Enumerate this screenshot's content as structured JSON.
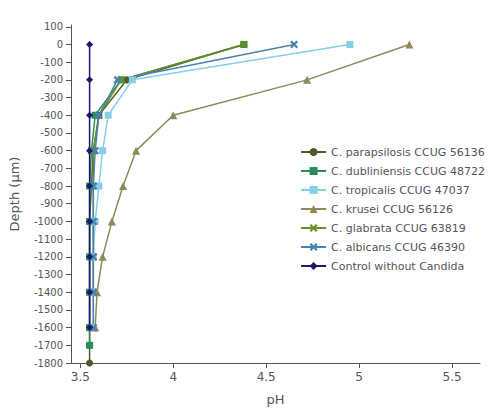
{
  "chart_data": {
    "type": "line",
    "xlabel": "pH",
    "ylabel": "Depth (μm)",
    "series": [
      {
        "name": "C. parapsilosis CCUG 56136",
        "color": "#4d5a2a",
        "marker": "circle",
        "x": [
          4.38,
          3.75,
          3.6,
          3.57,
          3.56,
          3.55,
          3.55,
          3.55,
          3.55,
          3.55,
          3.55
        ],
        "values": [
          0,
          -200,
          -400,
          -600,
          -800,
          -1000,
          -1200,
          -1400,
          -1600,
          -1700,
          -1800
        ]
      },
      {
        "name": "C. dubliniensis CCUG 48722",
        "color": "#2e8b57",
        "marker": "square",
        "x": [
          4.38,
          3.72,
          3.58,
          3.56,
          3.55,
          3.55,
          3.55,
          3.55,
          3.55,
          3.55
        ],
        "values": [
          0,
          -200,
          -400,
          -600,
          -800,
          -1000,
          -1200,
          -1400,
          -1600,
          -1700
        ]
      },
      {
        "name": "C. tropicalis CCUG 47037",
        "color": "#87ceeb",
        "marker": "square",
        "x": [
          4.95,
          3.78,
          3.65,
          3.62,
          3.6,
          3.58,
          3.57,
          3.57,
          3.57
        ],
        "values": [
          0,
          -200,
          -400,
          -600,
          -800,
          -1000,
          -1200,
          -1400,
          -1600
        ]
      },
      {
        "name": "C. krusei CCUG 56126",
        "color": "#8b8b5a",
        "marker": "triangle",
        "x": [
          5.27,
          4.72,
          4.0,
          3.8,
          3.73,
          3.67,
          3.62,
          3.59,
          3.58
        ],
        "values": [
          0,
          -200,
          -400,
          -600,
          -800,
          -1000,
          -1200,
          -1400,
          -1600
        ]
      },
      {
        "name": "C. glabrata CCUG 63819",
        "color": "#6b8e23",
        "marker": "x",
        "x": [
          4.38,
          3.72,
          3.6,
          3.57,
          3.57,
          3.57,
          3.57,
          3.57
        ],
        "values": [
          0,
          -200,
          -400,
          -600,
          -800,
          -1000,
          -1200,
          -1400
        ]
      },
      {
        "name": "C. albicans CCUG 46390",
        "color": "#4682b4",
        "marker": "x",
        "x": [
          4.65,
          3.7,
          3.6,
          3.58,
          3.57,
          3.57,
          3.57,
          3.57,
          3.57
        ],
        "values": [
          0,
          -200,
          -400,
          -600,
          -800,
          -1000,
          -1200,
          -1400,
          -1600
        ]
      },
      {
        "name": "Control without Candida",
        "color": "#191970",
        "marker": "diamond",
        "x": [
          3.55,
          3.55,
          3.55,
          3.55,
          3.55,
          3.55,
          3.55,
          3.55,
          3.55
        ],
        "values": [
          0,
          -200,
          -400,
          -600,
          -800,
          -1000,
          -1200,
          -1400,
          -1600
        ]
      }
    ],
    "xlim": [
      3.45,
      5.65
    ],
    "xticks": [
      3.5,
      4,
      4.5,
      5,
      5.5
    ],
    "ylim": [
      -1800,
      110
    ],
    "yticks": [
      100,
      0,
      -100,
      -200,
      -300,
      -400,
      -500,
      -600,
      -700,
      -800,
      -900,
      -1000,
      -1100,
      -1200,
      -1300,
      -1400,
      -1500,
      -1600,
      -1700,
      -1800
    ],
    "grid": false,
    "legend": "right"
  }
}
